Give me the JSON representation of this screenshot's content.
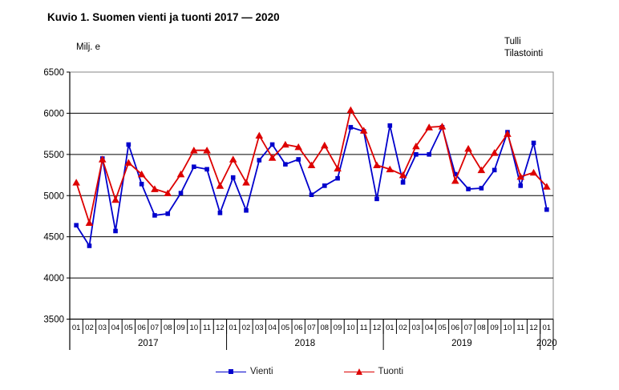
{
  "title": "Kuvio 1. Suomen vienti ja tuonti 2017 — 2020",
  "y_axis_unit": "Milj. e",
  "source": {
    "line1": "Tulli",
    "line2": "Tilastointi"
  },
  "chart_data": {
    "type": "line",
    "title": "Kuvio 1. Suomen vienti ja tuonti 2017 — 2020",
    "ylabel": "Milj. e",
    "ylim": [
      3500,
      6500
    ],
    "yticks": [
      6500,
      6000,
      5500,
      5000,
      4500,
      4000,
      3500
    ],
    "grid": "horizontal",
    "legend_position": "bottom",
    "x_months": [
      "01",
      "02",
      "03",
      "04",
      "05",
      "06",
      "07",
      "08",
      "09",
      "10",
      "11",
      "12",
      "01",
      "02",
      "03",
      "04",
      "05",
      "06",
      "07",
      "08",
      "09",
      "10",
      "11",
      "12",
      "01",
      "02",
      "03",
      "04",
      "05",
      "06",
      "07",
      "08",
      "09",
      "10",
      "11",
      "12",
      "01"
    ],
    "years": [
      {
        "label": "2017",
        "months": 12
      },
      {
        "label": "2018",
        "months": 12
      },
      {
        "label": "2019",
        "months": 12
      },
      {
        "label": "2020",
        "months": 1
      }
    ],
    "series": [
      {
        "name": "Vienti",
        "color": "#0000cc",
        "marker": "square",
        "values": [
          4640,
          4390,
          5450,
          4570,
          5620,
          5140,
          4760,
          4780,
          5030,
          5350,
          5320,
          4790,
          5220,
          4820,
          5430,
          5620,
          5380,
          5440,
          5010,
          5120,
          5210,
          5830,
          5780,
          4960,
          5850,
          5160,
          5500,
          5500,
          5830,
          5260,
          5080,
          5090,
          5310,
          5770,
          5120,
          5640,
          4830
        ]
      },
      {
        "name": "Tuonti",
        "color": "#dd0000",
        "marker": "triangle",
        "values": [
          5160,
          4670,
          5440,
          4950,
          5400,
          5260,
          5080,
          5030,
          5260,
          5550,
          5550,
          5120,
          5440,
          5160,
          5730,
          5460,
          5620,
          5590,
          5370,
          5610,
          5330,
          6040,
          5790,
          5370,
          5320,
          5250,
          5600,
          5830,
          5840,
          5180,
          5570,
          5310,
          5520,
          5750,
          5230,
          5280,
          5110
        ]
      }
    ]
  }
}
